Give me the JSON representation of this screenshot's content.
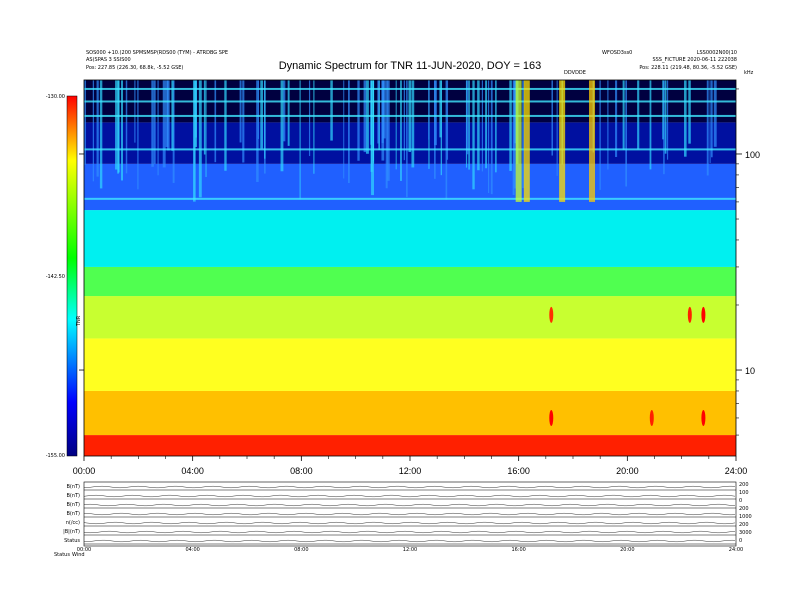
{
  "header": {
    "title": "Dynamic Spectrum for TNR 11-JUN-2020, DOY = 163",
    "top_left_line1": "SOS000 +10.(200 SPMSMSP(RDS00 (TYM) - ATRDBG SPE",
    "top_left_line2": "AS(SPAS 3 SSIS00",
    "top_left_line3": "Pos:   227.85 (226.30, 68.8k, -5.52 GSE)",
    "top_mid_label": "WFOSD3ss0",
    "top_right_line1": "LSS0002N00(10",
    "top_right_line2": "SSS_FICTURE  2020-06-11 222038",
    "top_right_line3": "Pos:   228.11 (219.48, 80.36, -5.52 GSE)",
    "marker_label": "DDVDDE",
    "corner_unit": "kHz"
  },
  "colorbar": {
    "label_top": "-130.00",
    "label_mid": "-142.50",
    "label_bottom": "-155.00",
    "side_label": "TNR"
  },
  "footer": {
    "left_labels": [
      "B(nT)",
      "B(nT)",
      "B(nT)",
      "B(nT)",
      "n(/cc)",
      "|B|(nT)",
      "Status"
    ],
    "right_labels": [
      "200",
      "100",
      "0",
      "200",
      "1000",
      "200",
      "3000",
      "0"
    ],
    "bottom_left": "Status",
    "bottom_left2": "Wind"
  },
  "chart_data": {
    "type": "heatmap",
    "title": "Dynamic Spectrum for TNR 11-JUN-2020, DOY = 163",
    "x_ticks": [
      "00:00",
      "04:00",
      "08:00",
      "12:00",
      "16:00",
      "20:00",
      "24:00"
    ],
    "x_range_hours": [
      0,
      24
    ],
    "y_scale": "log",
    "y_ticks": [
      "100",
      "10"
    ],
    "y_tick_values": [
      100,
      10
    ],
    "y_range_khz": [
      4,
      220
    ],
    "color_scale": {
      "min": -155.0,
      "max": -130.0,
      "colors": [
        "#ff0000",
        "#ffff00",
        "#00ff00",
        "#00ffff",
        "#0000ff",
        "#000080"
      ]
    },
    "intensity_bands": [
      {
        "from_khz": 4,
        "to_khz": 5,
        "color": "#ff2000"
      },
      {
        "from_khz": 5,
        "to_khz": 8,
        "color": "#ffc000"
      },
      {
        "from_khz": 8,
        "to_khz": 14,
        "color": "#ffff20"
      },
      {
        "from_khz": 14,
        "to_khz": 22,
        "color": "#c8ff30"
      },
      {
        "from_khz": 22,
        "to_khz": 30,
        "color": "#50ff50"
      },
      {
        "from_khz": 30,
        "to_khz": 55,
        "color": "#00f0f0"
      },
      {
        "from_khz": 55,
        "to_khz": 90,
        "color": "#2060ff"
      },
      {
        "from_khz": 90,
        "to_khz": 140,
        "color": "#0010a0"
      },
      {
        "from_khz": 140,
        "to_khz": 220,
        "color": "#000040"
      }
    ],
    "bursts": [
      {
        "hour": 16.0,
        "color": "#c8ff30"
      },
      {
        "hour": 16.3,
        "color": "#ffe000"
      },
      {
        "hour": 17.6,
        "color": "#ffe000"
      },
      {
        "hour": 18.7,
        "color": "#ffcc00"
      }
    ],
    "hot_spots": [
      {
        "hour": 17.2,
        "khz": 6,
        "color": "#ff0000"
      },
      {
        "hour": 17.2,
        "khz": 18,
        "color": "#ff3000"
      },
      {
        "hour": 20.9,
        "khz": 6,
        "color": "#ff2000"
      },
      {
        "hour": 22.3,
        "khz": 18,
        "color": "#ff2000"
      },
      {
        "hour": 22.8,
        "khz": 18,
        "color": "#ff0000"
      },
      {
        "hour": 22.8,
        "khz": 6,
        "color": "#ff0000"
      }
    ],
    "footer_x_ticks": [
      "00:00",
      "04:00",
      "08:00",
      "12:00",
      "16:00",
      "20:00",
      "24:00"
    ]
  }
}
